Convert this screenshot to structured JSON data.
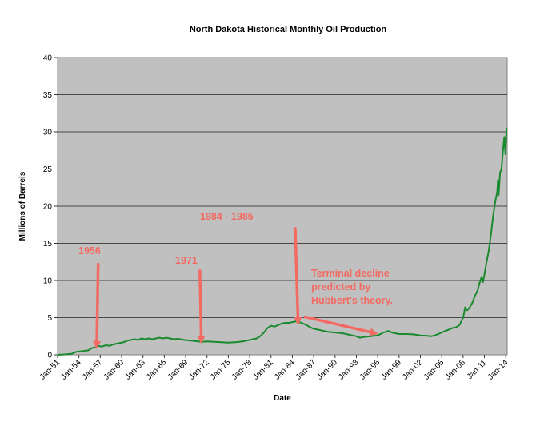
{
  "chart_data": {
    "type": "line",
    "title": "North Dakota Historical Monthly Oil Production",
    "xlabel": "Date",
    "ylabel": "Millions of Barrels",
    "ylim": [
      0,
      40
    ],
    "yticks": [
      0,
      5,
      10,
      15,
      20,
      25,
      30,
      35,
      40
    ],
    "xlim": [
      1951,
      2014.2
    ],
    "xticks": [
      "Jan-51",
      "Jan-54",
      "Jan-57",
      "Jan-60",
      "Jan-63",
      "Jan-66",
      "Jan-69",
      "Jan-72",
      "Jan-75",
      "Jan-78",
      "Jan-81",
      "Jan-84",
      "Jan-87",
      "Jan-90",
      "Jan-93",
      "Jan-96",
      "Jan-99",
      "Jan-02",
      "Jan-05",
      "Jan-08",
      "Jan-11",
      "Jan-14"
    ],
    "grid": true,
    "background_color": "#c0c0c0",
    "series": [
      {
        "color": "#1a8a2e",
        "points": [
          [
            1951.0,
            0.0
          ],
          [
            1952.0,
            0.05
          ],
          [
            1953.0,
            0.15
          ],
          [
            1953.6,
            0.4
          ],
          [
            1954.5,
            0.5
          ],
          [
            1955.3,
            0.6
          ],
          [
            1955.8,
            0.9
          ],
          [
            1956.3,
            1.0
          ],
          [
            1956.8,
            1.2
          ],
          [
            1957.2,
            1.1
          ],
          [
            1957.8,
            1.3
          ],
          [
            1958.3,
            1.2
          ],
          [
            1958.8,
            1.4
          ],
          [
            1959.3,
            1.5
          ],
          [
            1959.8,
            1.6
          ],
          [
            1960.3,
            1.7
          ],
          [
            1960.8,
            1.9
          ],
          [
            1961.3,
            2.0
          ],
          [
            1961.8,
            2.1
          ],
          [
            1962.3,
            2.0
          ],
          [
            1962.8,
            2.2
          ],
          [
            1963.3,
            2.1
          ],
          [
            1963.8,
            2.2
          ],
          [
            1964.3,
            2.1
          ],
          [
            1964.8,
            2.2
          ],
          [
            1965.3,
            2.3
          ],
          [
            1965.8,
            2.2
          ],
          [
            1966.3,
            2.3
          ],
          [
            1966.8,
            2.2
          ],
          [
            1967.3,
            2.1
          ],
          [
            1967.8,
            2.15
          ],
          [
            1968.3,
            2.1
          ],
          [
            1968.8,
            2.0
          ],
          [
            1969.3,
            1.95
          ],
          [
            1969.8,
            1.9
          ],
          [
            1970.3,
            1.85
          ],
          [
            1970.8,
            1.8
          ],
          [
            1971.3,
            1.75
          ],
          [
            1972.0,
            1.8
          ],
          [
            1973.0,
            1.75
          ],
          [
            1974.0,
            1.7
          ],
          [
            1975.0,
            1.65
          ],
          [
            1976.0,
            1.7
          ],
          [
            1977.0,
            1.8
          ],
          [
            1978.0,
            2.0
          ],
          [
            1979.0,
            2.2
          ],
          [
            1979.6,
            2.6
          ],
          [
            1980.0,
            3.0
          ],
          [
            1980.5,
            3.6
          ],
          [
            1981.0,
            3.9
          ],
          [
            1981.5,
            3.8
          ],
          [
            1982.0,
            4.0
          ],
          [
            1982.5,
            4.2
          ],
          [
            1983.0,
            4.3
          ],
          [
            1983.5,
            4.3
          ],
          [
            1984.0,
            4.4
          ],
          [
            1984.5,
            4.5
          ],
          [
            1985.0,
            4.4
          ],
          [
            1985.5,
            4.2
          ],
          [
            1986.0,
            4.0
          ],
          [
            1986.5,
            3.7
          ],
          [
            1987.0,
            3.5
          ],
          [
            1988.0,
            3.3
          ],
          [
            1989.0,
            3.1
          ],
          [
            1990.0,
            3.0
          ],
          [
            1991.0,
            2.9
          ],
          [
            1992.0,
            2.7
          ],
          [
            1993.0,
            2.5
          ],
          [
            1993.5,
            2.3
          ],
          [
            1994.0,
            2.4
          ],
          [
            1995.0,
            2.5
          ],
          [
            1996.0,
            2.6
          ],
          [
            1996.8,
            3.0
          ],
          [
            1997.5,
            3.2
          ],
          [
            1998.0,
            3.0
          ],
          [
            1999.0,
            2.8
          ],
          [
            2000.0,
            2.8
          ],
          [
            2001.0,
            2.75
          ],
          [
            2002.0,
            2.6
          ],
          [
            2003.0,
            2.55
          ],
          [
            2003.5,
            2.5
          ],
          [
            2004.0,
            2.6
          ],
          [
            2004.5,
            2.8
          ],
          [
            2005.0,
            3.0
          ],
          [
            2005.5,
            3.2
          ],
          [
            2006.0,
            3.4
          ],
          [
            2006.5,
            3.6
          ],
          [
            2007.0,
            3.7
          ],
          [
            2007.5,
            4.0
          ],
          [
            2008.0,
            5.0
          ],
          [
            2008.3,
            6.4
          ],
          [
            2008.6,
            6.0
          ],
          [
            2009.0,
            6.5
          ],
          [
            2009.3,
            7.0
          ],
          [
            2009.6,
            7.8
          ],
          [
            2010.0,
            8.6
          ],
          [
            2010.3,
            9.6
          ],
          [
            2010.6,
            10.5
          ],
          [
            2010.8,
            9.8
          ],
          [
            2011.0,
            10.8
          ],
          [
            2011.3,
            12.5
          ],
          [
            2011.6,
            14.0
          ],
          [
            2011.9,
            16.0
          ],
          [
            2012.2,
            18.5
          ],
          [
            2012.5,
            20.5
          ],
          [
            2012.8,
            22.0
          ],
          [
            2012.9,
            23.5
          ],
          [
            2013.0,
            21.5
          ],
          [
            2013.2,
            24.5
          ],
          [
            2013.4,
            25.0
          ],
          [
            2013.6,
            27.5
          ],
          [
            2013.8,
            29.3
          ],
          [
            2013.95,
            27.0
          ],
          [
            2014.1,
            30.5
          ]
        ]
      }
    ],
    "annotations": [
      {
        "text": "1956",
        "from": [
          1956.7,
          12.2
        ],
        "to": [
          1956.5,
          1.1
        ]
      },
      {
        "text": "1971",
        "from": [
          1971.0,
          11.3
        ],
        "to": [
          1971.2,
          1.8
        ]
      },
      {
        "text": "1984 - 1985",
        "from": [
          1984.4,
          17.0
        ],
        "to": [
          1984.8,
          4.3
        ]
      },
      {
        "text": "Terminal decline predicted by Hubbert's theory.",
        "from": [
          1985.8,
          5.1
        ],
        "to": [
          1995.7,
          2.9
        ]
      }
    ]
  },
  "annotation_lines": {
    "a1": [
      "1956"
    ],
    "a2": [
      "1971"
    ],
    "a3": [
      "1984 - 1985"
    ],
    "a4": [
      "Terminal decline",
      "predicted by",
      "Hubbert's theory."
    ]
  },
  "colors": {
    "arrow": "#f26a61",
    "line": "#1a8a2e",
    "plot_bg": "#c0c0c0"
  }
}
